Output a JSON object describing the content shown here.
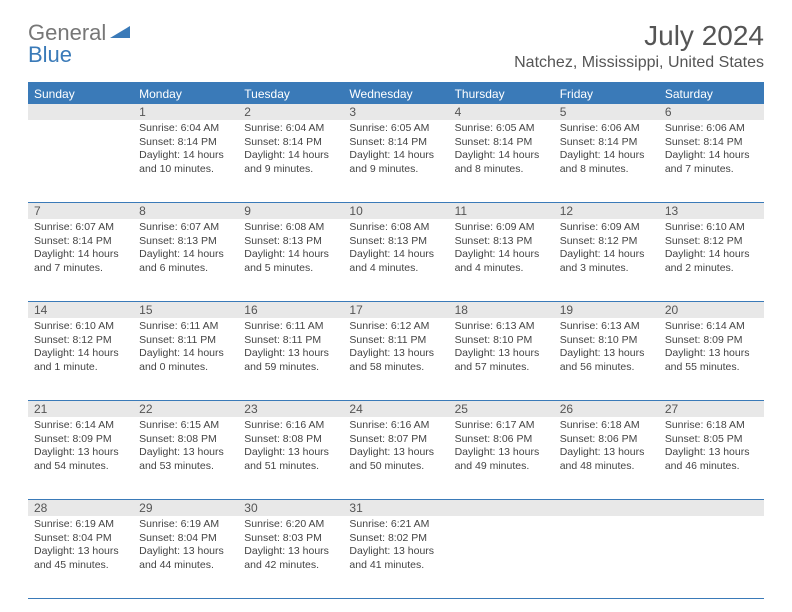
{
  "logo": {
    "text1": "General",
    "text2": "Blue"
  },
  "title": "July 2024",
  "location": "Natchez, Mississippi, United States",
  "day_names": [
    "Sunday",
    "Monday",
    "Tuesday",
    "Wednesday",
    "Thursday",
    "Friday",
    "Saturday"
  ],
  "colors": {
    "header_bg": "#3a7ab8",
    "header_text": "#ffffff",
    "daynum_bg": "#e8e8e8",
    "border": "#3a7ab8",
    "body_text": "#444444",
    "title_text": "#555555"
  },
  "fonts": {
    "title_size": 28,
    "location_size": 16,
    "dayheader_size": 12,
    "daynum_size": 12,
    "cell_size": 10.5
  },
  "first_weekday_offset": 1,
  "days": [
    {
      "n": 1,
      "sunrise": "6:04 AM",
      "sunset": "8:14 PM",
      "daylight": "14 hours and 10 minutes."
    },
    {
      "n": 2,
      "sunrise": "6:04 AM",
      "sunset": "8:14 PM",
      "daylight": "14 hours and 9 minutes."
    },
    {
      "n": 3,
      "sunrise": "6:05 AM",
      "sunset": "8:14 PM",
      "daylight": "14 hours and 9 minutes."
    },
    {
      "n": 4,
      "sunrise": "6:05 AM",
      "sunset": "8:14 PM",
      "daylight": "14 hours and 8 minutes."
    },
    {
      "n": 5,
      "sunrise": "6:06 AM",
      "sunset": "8:14 PM",
      "daylight": "14 hours and 8 minutes."
    },
    {
      "n": 6,
      "sunrise": "6:06 AM",
      "sunset": "8:14 PM",
      "daylight": "14 hours and 7 minutes."
    },
    {
      "n": 7,
      "sunrise": "6:07 AM",
      "sunset": "8:14 PM",
      "daylight": "14 hours and 7 minutes."
    },
    {
      "n": 8,
      "sunrise": "6:07 AM",
      "sunset": "8:13 PM",
      "daylight": "14 hours and 6 minutes."
    },
    {
      "n": 9,
      "sunrise": "6:08 AM",
      "sunset": "8:13 PM",
      "daylight": "14 hours and 5 minutes."
    },
    {
      "n": 10,
      "sunrise": "6:08 AM",
      "sunset": "8:13 PM",
      "daylight": "14 hours and 4 minutes."
    },
    {
      "n": 11,
      "sunrise": "6:09 AM",
      "sunset": "8:13 PM",
      "daylight": "14 hours and 4 minutes."
    },
    {
      "n": 12,
      "sunrise": "6:09 AM",
      "sunset": "8:12 PM",
      "daylight": "14 hours and 3 minutes."
    },
    {
      "n": 13,
      "sunrise": "6:10 AM",
      "sunset": "8:12 PM",
      "daylight": "14 hours and 2 minutes."
    },
    {
      "n": 14,
      "sunrise": "6:10 AM",
      "sunset": "8:12 PM",
      "daylight": "14 hours and 1 minute."
    },
    {
      "n": 15,
      "sunrise": "6:11 AM",
      "sunset": "8:11 PM",
      "daylight": "14 hours and 0 minutes."
    },
    {
      "n": 16,
      "sunrise": "6:11 AM",
      "sunset": "8:11 PM",
      "daylight": "13 hours and 59 minutes."
    },
    {
      "n": 17,
      "sunrise": "6:12 AM",
      "sunset": "8:11 PM",
      "daylight": "13 hours and 58 minutes."
    },
    {
      "n": 18,
      "sunrise": "6:13 AM",
      "sunset": "8:10 PM",
      "daylight": "13 hours and 57 minutes."
    },
    {
      "n": 19,
      "sunrise": "6:13 AM",
      "sunset": "8:10 PM",
      "daylight": "13 hours and 56 minutes."
    },
    {
      "n": 20,
      "sunrise": "6:14 AM",
      "sunset": "8:09 PM",
      "daylight": "13 hours and 55 minutes."
    },
    {
      "n": 21,
      "sunrise": "6:14 AM",
      "sunset": "8:09 PM",
      "daylight": "13 hours and 54 minutes."
    },
    {
      "n": 22,
      "sunrise": "6:15 AM",
      "sunset": "8:08 PM",
      "daylight": "13 hours and 53 minutes."
    },
    {
      "n": 23,
      "sunrise": "6:16 AM",
      "sunset": "8:08 PM",
      "daylight": "13 hours and 51 minutes."
    },
    {
      "n": 24,
      "sunrise": "6:16 AM",
      "sunset": "8:07 PM",
      "daylight": "13 hours and 50 minutes."
    },
    {
      "n": 25,
      "sunrise": "6:17 AM",
      "sunset": "8:06 PM",
      "daylight": "13 hours and 49 minutes."
    },
    {
      "n": 26,
      "sunrise": "6:18 AM",
      "sunset": "8:06 PM",
      "daylight": "13 hours and 48 minutes."
    },
    {
      "n": 27,
      "sunrise": "6:18 AM",
      "sunset": "8:05 PM",
      "daylight": "13 hours and 46 minutes."
    },
    {
      "n": 28,
      "sunrise": "6:19 AM",
      "sunset": "8:04 PM",
      "daylight": "13 hours and 45 minutes."
    },
    {
      "n": 29,
      "sunrise": "6:19 AM",
      "sunset": "8:04 PM",
      "daylight": "13 hours and 44 minutes."
    },
    {
      "n": 30,
      "sunrise": "6:20 AM",
      "sunset": "8:03 PM",
      "daylight": "13 hours and 42 minutes."
    },
    {
      "n": 31,
      "sunrise": "6:21 AM",
      "sunset": "8:02 PM",
      "daylight": "13 hours and 41 minutes."
    }
  ],
  "labels": {
    "sunrise": "Sunrise:",
    "sunset": "Sunset:",
    "daylight": "Daylight:"
  }
}
